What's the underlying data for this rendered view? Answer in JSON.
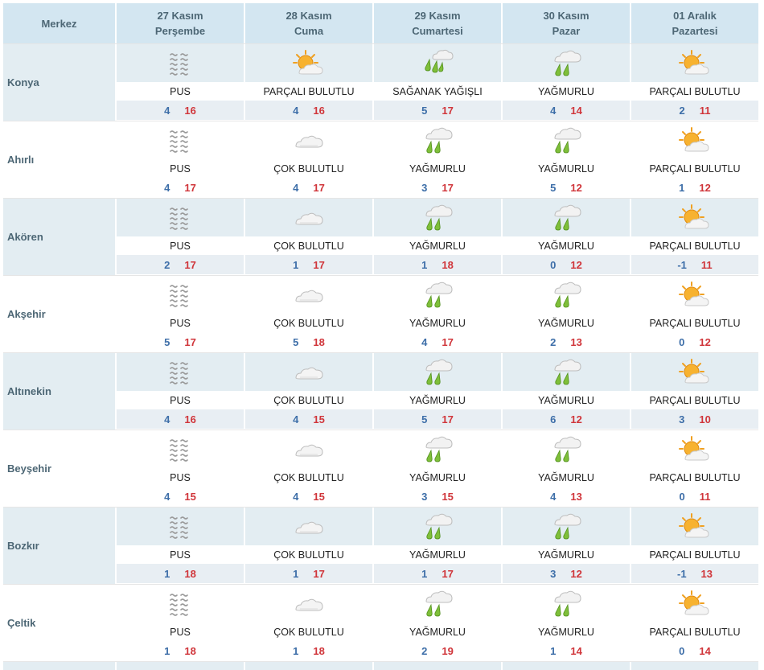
{
  "header": {
    "city_label": "Merkez",
    "days": [
      {
        "date": "27 Kasım",
        "weekday": "Perşembe"
      },
      {
        "date": "28 Kasım",
        "weekday": "Cuma"
      },
      {
        "date": "29 Kasım",
        "weekday": "Cumartesi"
      },
      {
        "date": "30 Kasım",
        "weekday": "Pazar"
      },
      {
        "date": "01 Aralık",
        "weekday": "Pazartesi"
      }
    ]
  },
  "rows": [
    {
      "city": "Konya",
      "days": [
        {
          "icon": "fog-icon",
          "condition": "PUS",
          "min": "4",
          "max": "16"
        },
        {
          "icon": "partly-cloudy-icon",
          "condition": "PARÇALI BULUTLU",
          "min": "4",
          "max": "16"
        },
        {
          "icon": "heavy-rain-icon",
          "condition": "SAĞANAK YAĞIŞLI",
          "min": "5",
          "max": "17"
        },
        {
          "icon": "rain-icon",
          "condition": "YAĞMURLU",
          "min": "4",
          "max": "14"
        },
        {
          "icon": "partly-cloudy-icon",
          "condition": "PARÇALI BULUTLU",
          "min": "2",
          "max": "11"
        }
      ]
    },
    {
      "city": "Ahırlı",
      "days": [
        {
          "icon": "fog-icon",
          "condition": "PUS",
          "min": "4",
          "max": "17"
        },
        {
          "icon": "cloudy-icon",
          "condition": "ÇOK BULUTLU",
          "min": "4",
          "max": "17"
        },
        {
          "icon": "rain-icon",
          "condition": "YAĞMURLU",
          "min": "3",
          "max": "17"
        },
        {
          "icon": "rain-icon",
          "condition": "YAĞMURLU",
          "min": "5",
          "max": "12"
        },
        {
          "icon": "partly-cloudy-icon",
          "condition": "PARÇALI BULUTLU",
          "min": "1",
          "max": "12"
        }
      ]
    },
    {
      "city": "Akören",
      "days": [
        {
          "icon": "fog-icon",
          "condition": "PUS",
          "min": "2",
          "max": "17"
        },
        {
          "icon": "cloudy-icon",
          "condition": "ÇOK BULUTLU",
          "min": "1",
          "max": "17"
        },
        {
          "icon": "rain-icon",
          "condition": "YAĞMURLU",
          "min": "1",
          "max": "18"
        },
        {
          "icon": "rain-icon",
          "condition": "YAĞMURLU",
          "min": "0",
          "max": "12"
        },
        {
          "icon": "partly-cloudy-icon",
          "condition": "PARÇALI BULUTLU",
          "min": "-1",
          "max": "11"
        }
      ]
    },
    {
      "city": "Akşehir",
      "days": [
        {
          "icon": "fog-icon",
          "condition": "PUS",
          "min": "5",
          "max": "17"
        },
        {
          "icon": "cloudy-icon",
          "condition": "ÇOK BULUTLU",
          "min": "5",
          "max": "18"
        },
        {
          "icon": "rain-icon",
          "condition": "YAĞMURLU",
          "min": "4",
          "max": "17"
        },
        {
          "icon": "rain-icon",
          "condition": "YAĞMURLU",
          "min": "2",
          "max": "13"
        },
        {
          "icon": "partly-cloudy-icon",
          "condition": "PARÇALI BULUTLU",
          "min": "0",
          "max": "12"
        }
      ]
    },
    {
      "city": "Altınekin",
      "days": [
        {
          "icon": "fog-icon",
          "condition": "PUS",
          "min": "4",
          "max": "16"
        },
        {
          "icon": "cloudy-icon",
          "condition": "ÇOK BULUTLU",
          "min": "4",
          "max": "15"
        },
        {
          "icon": "rain-icon",
          "condition": "YAĞMURLU",
          "min": "5",
          "max": "17"
        },
        {
          "icon": "rain-icon",
          "condition": "YAĞMURLU",
          "min": "6",
          "max": "12"
        },
        {
          "icon": "partly-cloudy-icon",
          "condition": "PARÇALI BULUTLU",
          "min": "3",
          "max": "10"
        }
      ]
    },
    {
      "city": "Beyşehir",
      "days": [
        {
          "icon": "fog-icon",
          "condition": "PUS",
          "min": "4",
          "max": "15"
        },
        {
          "icon": "cloudy-icon",
          "condition": "ÇOK BULUTLU",
          "min": "4",
          "max": "15"
        },
        {
          "icon": "rain-icon",
          "condition": "YAĞMURLU",
          "min": "3",
          "max": "15"
        },
        {
          "icon": "rain-icon",
          "condition": "YAĞMURLU",
          "min": "4",
          "max": "13"
        },
        {
          "icon": "partly-cloudy-icon",
          "condition": "PARÇALI BULUTLU",
          "min": "0",
          "max": "11"
        }
      ]
    },
    {
      "city": "Bozkır",
      "days": [
        {
          "icon": "fog-icon",
          "condition": "PUS",
          "min": "1",
          "max": "18"
        },
        {
          "icon": "cloudy-icon",
          "condition": "ÇOK BULUTLU",
          "min": "1",
          "max": "17"
        },
        {
          "icon": "rain-icon",
          "condition": "YAĞMURLU",
          "min": "1",
          "max": "17"
        },
        {
          "icon": "rain-icon",
          "condition": "YAĞMURLU",
          "min": "3",
          "max": "12"
        },
        {
          "icon": "partly-cloudy-icon",
          "condition": "PARÇALI BULUTLU",
          "min": "-1",
          "max": "13"
        }
      ]
    },
    {
      "city": "Çeltik",
      "days": [
        {
          "icon": "fog-icon",
          "condition": "PUS",
          "min": "1",
          "max": "18"
        },
        {
          "icon": "cloudy-icon",
          "condition": "ÇOK BULUTLU",
          "min": "1",
          "max": "18"
        },
        {
          "icon": "rain-icon",
          "condition": "YAĞMURLU",
          "min": "2",
          "max": "19"
        },
        {
          "icon": "rain-icon",
          "condition": "YAĞMURLU",
          "min": "1",
          "max": "14"
        },
        {
          "icon": "partly-cloudy-icon",
          "condition": "PARÇALI BULUTLU",
          "min": "0",
          "max": "14"
        }
      ]
    }
  ]
}
